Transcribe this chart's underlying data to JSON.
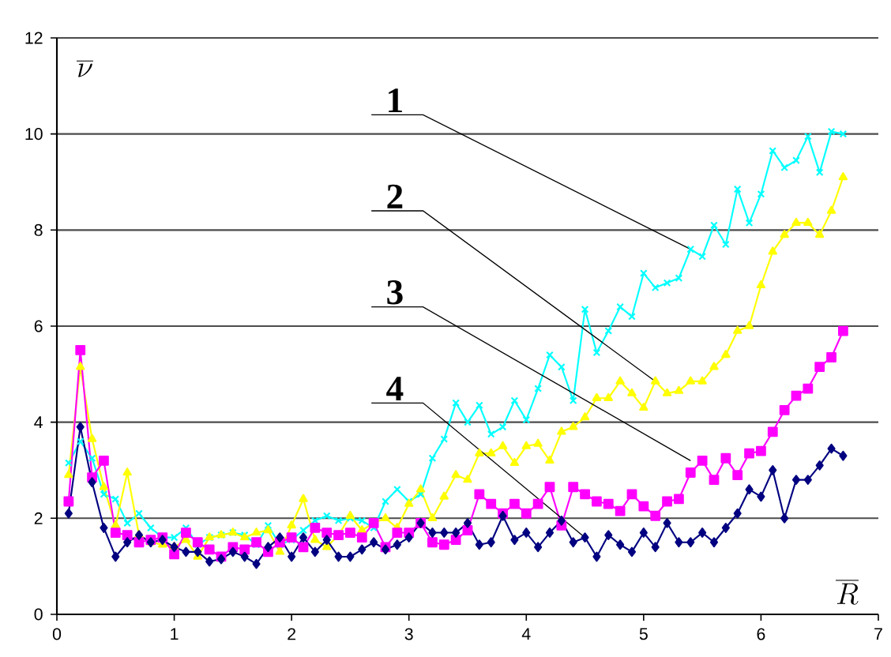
{
  "chart_data": {
    "type": "line",
    "xlabel": "\\overline{R}",
    "ylabel": "\\overline{\\nu}",
    "x": [
      0.1,
      0.2,
      0.3,
      0.4,
      0.5,
      0.6,
      0.7,
      0.8,
      0.9,
      1.0,
      1.1,
      1.2,
      1.3,
      1.4,
      1.5,
      1.6,
      1.7,
      1.8,
      1.9,
      2.0,
      2.1,
      2.2,
      2.3,
      2.4,
      2.5,
      2.6,
      2.7,
      2.8,
      2.9,
      3.0,
      3.1,
      3.2,
      3.3,
      3.4,
      3.5,
      3.6,
      3.7,
      3.8,
      3.9,
      4.0,
      4.1,
      4.2,
      4.3,
      4.4,
      4.5,
      4.6,
      4.7,
      4.8,
      4.9,
      5.0,
      5.1,
      5.2,
      5.3,
      5.4,
      5.5,
      5.6,
      5.7,
      5.8,
      5.9,
      6.0,
      6.1,
      6.2,
      6.3,
      6.4,
      6.5,
      6.6,
      6.7
    ],
    "series": [
      {
        "color": "#00ffff",
        "marker": "cross",
        "values": [
          3.15,
          3.6,
          3.25,
          2.5,
          2.4,
          1.9,
          2.1,
          1.8,
          1.6,
          1.6,
          1.8,
          1.45,
          1.6,
          1.65,
          1.7,
          1.65,
          1.45,
          1.85,
          1.45,
          1.55,
          1.75,
          1.95,
          2.05,
          1.95,
          2.0,
          1.95,
          1.8,
          2.35,
          2.6,
          2.35,
          2.5,
          3.25,
          3.65,
          4.4,
          4.0,
          4.35,
          3.75,
          3.9,
          4.45,
          4.05,
          4.7,
          5.4,
          5.15,
          4.45,
          6.35,
          5.45,
          5.9,
          6.4,
          6.2,
          7.1,
          6.8,
          6.9,
          7.0,
          7.6,
          7.45,
          8.1,
          7.7,
          8.85,
          8.15,
          8.75,
          9.65,
          9.3,
          9.45,
          9.95,
          9.2,
          10.05,
          10.0
        ]
      },
      {
        "color": "#ffff00",
        "marker": "triangle",
        "values": [
          2.9,
          5.15,
          3.65,
          2.65,
          1.85,
          2.95,
          1.65,
          1.5,
          1.45,
          1.4,
          1.55,
          1.2,
          1.6,
          1.65,
          1.7,
          1.6,
          1.7,
          1.75,
          1.3,
          1.85,
          2.4,
          1.55,
          1.4,
          1.65,
          2.05,
          1.75,
          1.9,
          2.0,
          1.8,
          2.3,
          2.6,
          2.0,
          2.45,
          2.9,
          2.8,
          3.35,
          3.35,
          3.5,
          3.15,
          3.5,
          3.55,
          3.2,
          3.8,
          3.9,
          4.1,
          4.5,
          4.5,
          4.85,
          4.6,
          4.3,
          4.85,
          4.6,
          4.65,
          4.85,
          4.85,
          5.15,
          5.4,
          5.9,
          6.0,
          6.85,
          7.55,
          7.9,
          8.15,
          8.15,
          7.9,
          8.4,
          9.1
        ]
      },
      {
        "color": "#ff00ff",
        "marker": "square",
        "values": [
          2.35,
          5.5,
          2.85,
          3.2,
          1.7,
          1.65,
          1.5,
          1.55,
          1.6,
          1.25,
          1.7,
          1.5,
          1.35,
          1.2,
          1.4,
          1.35,
          1.5,
          1.3,
          1.5,
          1.6,
          1.4,
          1.8,
          1.7,
          1.65,
          1.7,
          1.6,
          1.9,
          1.4,
          1.7,
          1.7,
          1.9,
          1.5,
          1.45,
          1.55,
          1.75,
          2.5,
          2.3,
          2.1,
          2.3,
          2.1,
          2.3,
          2.65,
          1.85,
          2.65,
          2.5,
          2.35,
          2.3,
          2.15,
          2.5,
          2.25,
          2.05,
          2.35,
          2.4,
          2.95,
          3.2,
          2.8,
          3.25,
          2.9,
          3.35,
          3.4,
          3.8,
          4.25,
          4.55,
          4.7,
          5.15,
          5.35,
          5.9
        ]
      },
      {
        "color": "#000080",
        "marker": "diamond",
        "values": [
          2.1,
          3.9,
          2.75,
          1.8,
          1.2,
          1.5,
          1.65,
          1.5,
          1.55,
          1.4,
          1.3,
          1.3,
          1.1,
          1.15,
          1.3,
          1.2,
          1.05,
          1.4,
          1.6,
          1.2,
          1.6,
          1.3,
          1.55,
          1.2,
          1.2,
          1.35,
          1.5,
          1.35,
          1.45,
          1.6,
          1.9,
          1.7,
          1.7,
          1.7,
          1.9,
          1.45,
          1.5,
          2.05,
          1.55,
          1.7,
          1.4,
          1.7,
          1.95,
          1.5,
          1.6,
          1.2,
          1.65,
          1.45,
          1.3,
          1.7,
          1.4,
          1.9,
          1.5,
          1.5,
          1.7,
          1.5,
          1.8,
          2.1,
          2.6,
          2.45,
          3.0,
          2.0,
          2.8,
          2.8,
          3.1,
          3.45,
          3.3
        ]
      }
    ],
    "annotations": [
      {
        "text": "1",
        "x": 5.4,
        "y": 7.6
      },
      {
        "text": "2",
        "x": 5.1,
        "y": 4.85
      },
      {
        "text": "3",
        "x": 5.4,
        "y": 3.2
      },
      {
        "text": "4",
        "x": 4.5,
        "y": 1.6
      }
    ],
    "xlim": [
      0,
      7
    ],
    "ylim": [
      0,
      12
    ],
    "xticks": [
      0,
      1,
      2,
      3,
      4,
      5,
      6,
      7
    ],
    "yticks": [
      0,
      2,
      4,
      6,
      8,
      10,
      12
    ],
    "grid": "y"
  }
}
